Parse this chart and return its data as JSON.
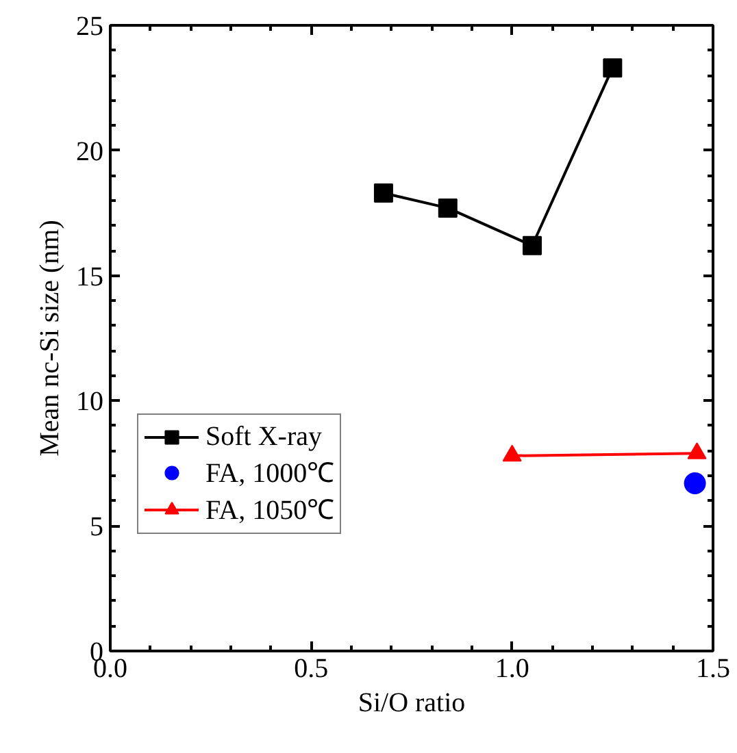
{
  "chart_data": {
    "type": "line",
    "xlabel": "Si/O ratio",
    "ylabel": "Mean nc-Si size (nm)",
    "xlim": [
      0,
      1.5
    ],
    "ylim": [
      0,
      25
    ],
    "xticks": [
      "0.0",
      0.5,
      "1.0",
      1.5
    ],
    "yticks": [
      0,
      5,
      10,
      15,
      20,
      25
    ],
    "grid": false,
    "legend": "bottom left",
    "series": [
      {
        "name": "Soft X-ray",
        "color": "#000000",
        "marker": "square",
        "x": [
          0.68,
          0.84,
          1.05,
          1.25
        ],
        "values": [
          18.3,
          17.7,
          16.2,
          23.3
        ]
      },
      {
        "name": "FA, 1000℃",
        "color": "#0000ff",
        "type": "scatter",
        "marker": "circle",
        "x": [
          1.455
        ],
        "values": [
          6.7
        ]
      },
      {
        "name": "FA, 1050℃",
        "color": "#ff0000",
        "marker": "triangle",
        "x": [
          1.0,
          1.46
        ],
        "values": [
          7.8,
          7.9
        ]
      }
    ]
  }
}
